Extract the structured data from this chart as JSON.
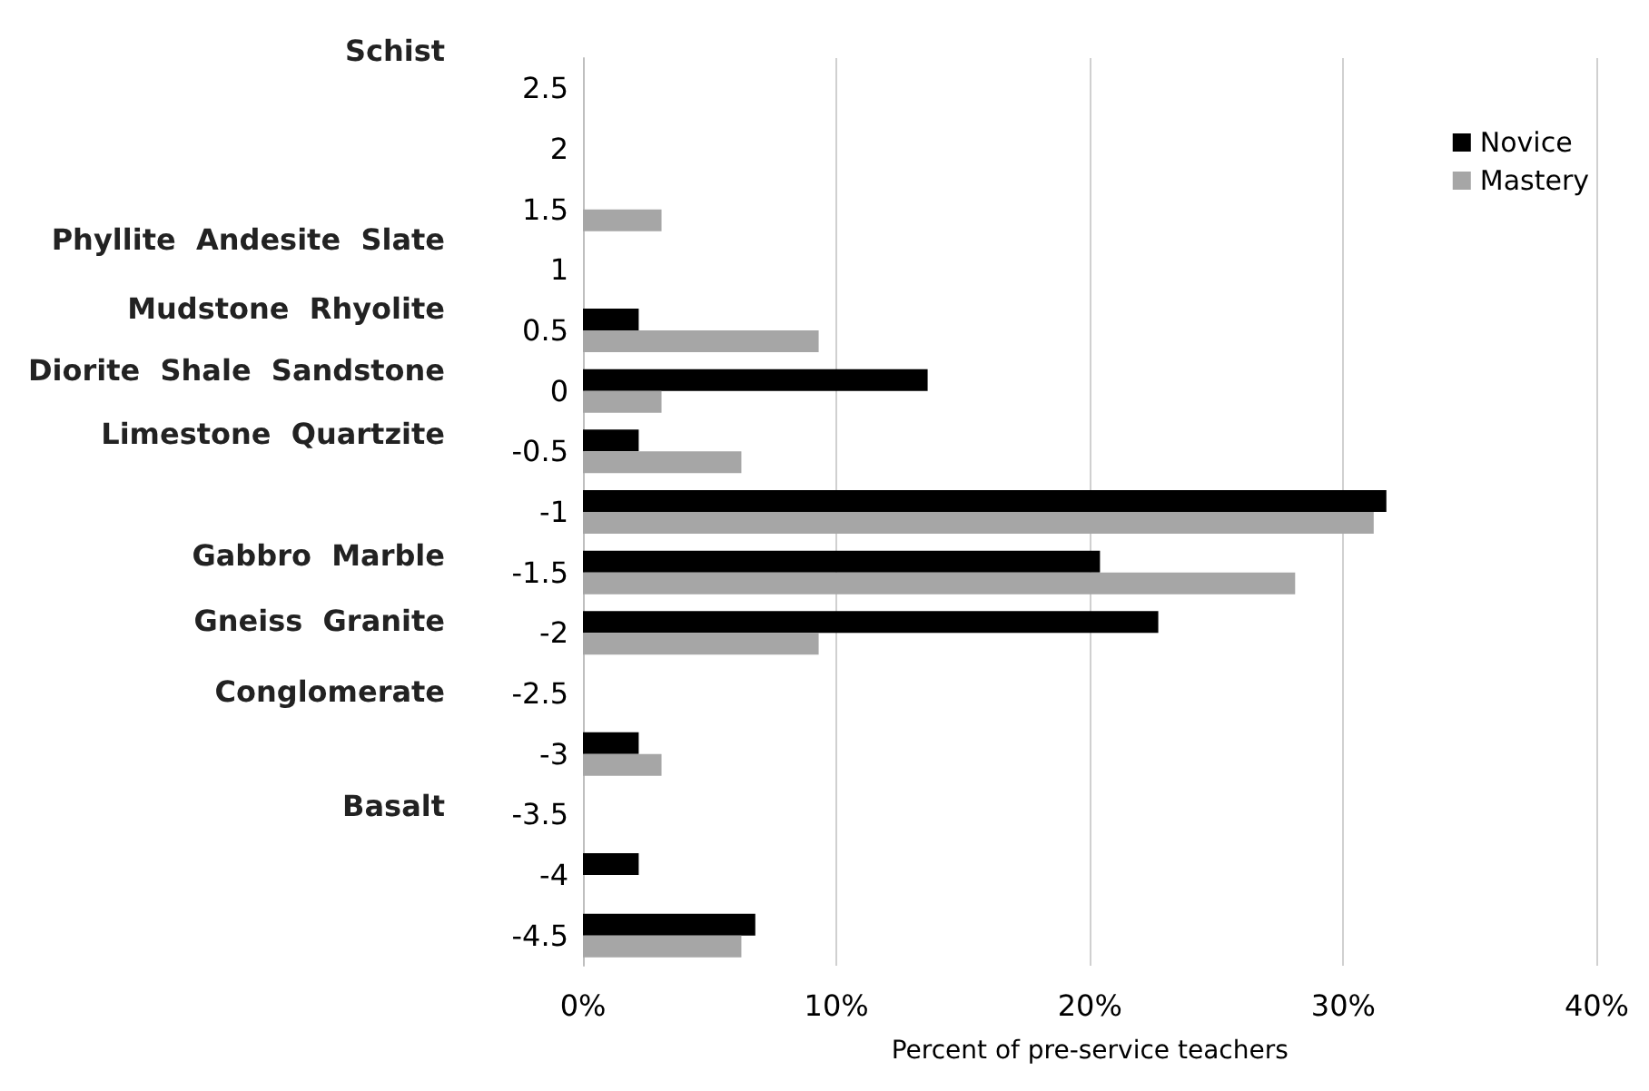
{
  "chart_data": {
    "type": "bar",
    "orientation": "horizontal",
    "xlabel": "Percent of pre-service teachers",
    "categories": [
      "2.5",
      "2",
      "1.5",
      "1",
      "0.5",
      "0",
      "-0.5",
      "-1",
      "-1.5",
      "-2",
      "-2.5",
      "-3",
      "-3.5",
      "-4",
      "-4.5"
    ],
    "series": [
      {
        "name": "Novice",
        "color": "#000000",
        "values": [
          null,
          null,
          null,
          null,
          2.2,
          13.6,
          2.2,
          31.7,
          20.4,
          22.7,
          null,
          2.2,
          null,
          2.2,
          6.8
        ]
      },
      {
        "name": "Mastery",
        "color": "#a6a6a6",
        "values": [
          null,
          null,
          3.1,
          null,
          9.3,
          3.1,
          6.25,
          31.2,
          28.1,
          9.3,
          null,
          3.1,
          null,
          null,
          6.25
        ]
      }
    ],
    "xlim": [
      0,
      40
    ],
    "xticks": [
      {
        "value": 0,
        "label": "0%"
      },
      {
        "value": 10,
        "label": "10%"
      },
      {
        "value": 20,
        "label": "20%"
      },
      {
        "value": 30,
        "label": "30%"
      },
      {
        "value": 40,
        "label": "40%"
      }
    ],
    "annotations": [
      "Schist",
      "Phyllite  Andesite  Slate",
      "Mudstone  Rhyolite",
      "Diorite  Shale  Sandstone",
      "Limestone  Quartzite",
      "Gabbro  Marble",
      "Gneiss  Granite",
      "Conglomerate",
      "Basalt"
    ],
    "grid": "x",
    "legend": "top right"
  }
}
